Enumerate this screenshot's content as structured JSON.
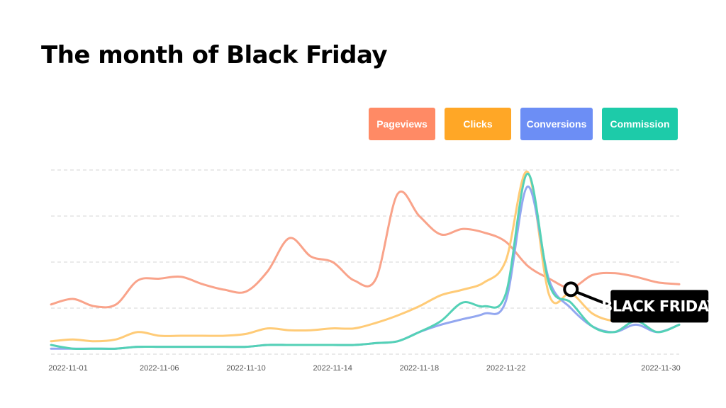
{
  "title": "The month of Black Friday",
  "callout": {
    "label": "BLACK FRIDAY",
    "x": "2022-11-25"
  },
  "legend": [
    {
      "label": "Pageviews",
      "color": "#FF8A65"
    },
    {
      "label": "Clicks",
      "color": "#FFA726"
    },
    {
      "label": "Conversions",
      "color": "#6C8EF5"
    },
    {
      "label": "Commission",
      "color": "#1DCBA9"
    }
  ],
  "chart_data": {
    "type": "line",
    "title": "The month of Black Friday",
    "xlabel": "",
    "ylabel": "",
    "grid": true,
    "legend_position": "top-right",
    "ylim": [
      0,
      100
    ],
    "x": [
      "2022-11-01",
      "2022-11-02",
      "2022-11-03",
      "2022-11-04",
      "2022-11-05",
      "2022-11-06",
      "2022-11-07",
      "2022-11-08",
      "2022-11-09",
      "2022-11-10",
      "2022-11-11",
      "2022-11-12",
      "2022-11-13",
      "2022-11-14",
      "2022-11-15",
      "2022-11-16",
      "2022-11-17",
      "2022-11-18",
      "2022-11-19",
      "2022-11-20",
      "2022-11-21",
      "2022-11-22",
      "2022-11-23",
      "2022-11-24",
      "2022-11-25",
      "2022-11-26",
      "2022-11-27",
      "2022-11-28",
      "2022-11-29",
      "2022-11-30"
    ],
    "x_ticks": [
      "2022-11-01",
      "2022-11-06",
      "2022-11-10",
      "2022-11-14",
      "2022-11-18",
      "2022-11-22",
      "2022-11-30"
    ],
    "series": [
      {
        "name": "Pageviews",
        "color": "#F9A38A",
        "values": [
          27,
          30,
          26,
          27,
          40,
          41,
          42,
          38,
          35,
          34,
          45,
          63,
          53,
          50,
          40,
          41,
          87,
          75,
          65,
          68,
          66,
          61,
          48,
          41,
          36,
          43,
          44,
          42,
          39,
          38
        ]
      },
      {
        "name": "Clicks",
        "color": "#FFCB77",
        "values": [
          7,
          8,
          7,
          8,
          12,
          10,
          10,
          10,
          10,
          11,
          14,
          13,
          13,
          14,
          14,
          17,
          21,
          26,
          32,
          35,
          39,
          51,
          99,
          32,
          33,
          22,
          18,
          19,
          19,
          19
        ]
      },
      {
        "name": "Conversions",
        "color": "#93A7F0",
        "values": [
          3,
          3,
          3,
          3,
          4,
          4,
          4,
          4,
          4,
          4,
          5,
          5,
          5,
          5,
          5,
          6,
          7,
          12,
          16,
          19,
          22,
          29,
          91,
          40,
          25,
          15,
          12,
          16,
          12,
          16
        ]
      },
      {
        "name": "Commission",
        "color": "#54D1B6",
        "values": [
          5,
          3,
          3,
          3,
          4,
          4,
          4,
          4,
          4,
          4,
          5,
          5,
          5,
          5,
          5,
          6,
          7,
          12,
          18,
          28,
          26,
          33,
          98,
          38,
          28,
          15,
          12,
          18,
          12,
          16
        ]
      }
    ]
  }
}
